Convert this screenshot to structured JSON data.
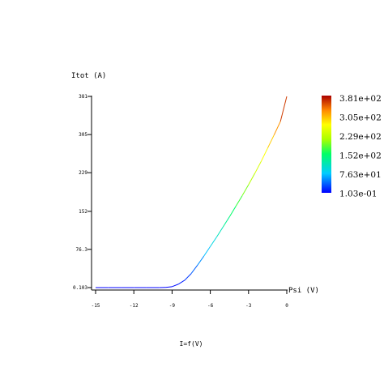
{
  "chart_data": {
    "type": "line",
    "title": "",
    "ylabel": "Itot (A)",
    "xlabel": "Psi (V)",
    "footer_label": "I=f(V)",
    "xlim": [
      -15,
      0
    ],
    "ylim": [
      0.103,
      381
    ],
    "x_ticks": [
      -15,
      -12,
      -9,
      -6,
      -3,
      0
    ],
    "x_tick_labels": [
      "-15",
      "-12",
      "-9",
      "-6",
      "-3",
      "0"
    ],
    "y_ticks": [
      0.103,
      76.3,
      152,
      229,
      305,
      381
    ],
    "y_tick_labels": [
      "0.103",
      "76.3",
      "152",
      "229",
      "305",
      "381"
    ],
    "grid": false,
    "colormap": "rainbow",
    "colorbar": {
      "labels": [
        "3.81e+02",
        "3.05e+02",
        "2.29e+02",
        "1.52e+02",
        "7.63e+01",
        "1.03e-01"
      ],
      "min": 0.103,
      "max": 381
    },
    "series": [
      {
        "x": [
          -15,
          -14,
          -13,
          -12,
          -11,
          -10,
          -9.5,
          -9,
          -8.5,
          -8,
          -7.5,
          -7,
          -6.5,
          -6,
          -5.5,
          -5,
          -4.5,
          -4,
          -3.5,
          -3,
          -2.5,
          -2,
          -1.5,
          -1,
          -0.5,
          0
        ],
        "y": [
          0.103,
          0.103,
          0.103,
          0.103,
          0.103,
          0.11,
          0.5,
          2,
          7,
          15,
          28,
          45,
          63,
          82,
          101,
          121,
          141,
          162,
          183,
          205,
          228,
          252,
          278,
          304,
          331,
          381
        ]
      }
    ]
  }
}
